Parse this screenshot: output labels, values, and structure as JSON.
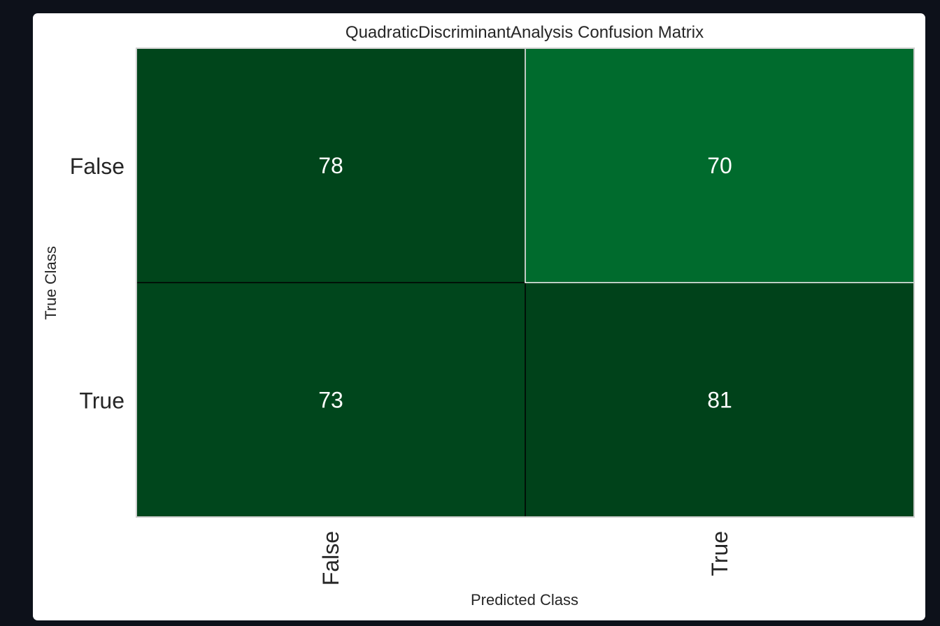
{
  "chart_data": {
    "type": "heatmap",
    "title": "QuadraticDiscriminantAnalysis Confusion Matrix",
    "xlabel": "Predicted Class",
    "ylabel": "True Class",
    "x_categories": [
      "False",
      "True"
    ],
    "y_categories": [
      "False",
      "True"
    ],
    "values": [
      [
        78,
        70
      ],
      [
        73,
        81
      ]
    ],
    "colormap": "Greens",
    "cell_colors": [
      [
        "#00451b",
        "#006b2d"
      ],
      [
        "#00461c",
        "#00421a"
      ]
    ],
    "grid": false,
    "legend": "none"
  },
  "colors": {
    "page_background": "#0d111a",
    "card_background": "#ffffff",
    "cell_text": "#ffffff",
    "label_text": "#262626",
    "frame": "#cfcfcf"
  }
}
